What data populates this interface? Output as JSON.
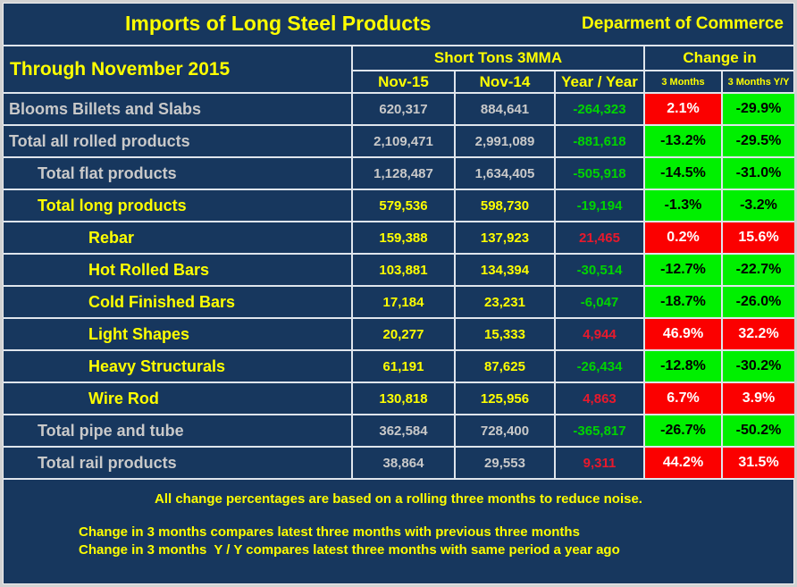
{
  "header": {
    "title": "Imports of Long Steel Products",
    "department": "Deparment of Commerce",
    "period": "Through November 2015",
    "group_tons": "Short Tons 3MMA",
    "group_change": "Change in",
    "columns": [
      "Nov-15",
      "Nov-14",
      "Year / Year",
      "3 Months",
      "3 Months Y/Y"
    ]
  },
  "rows": [
    {
      "label": "Blooms Billets and Slabs",
      "indent": 0,
      "tone": "silver",
      "nov15": "620,317",
      "nov14": "884,641",
      "yy": "-264,323",
      "yy_state": "neg",
      "m3": "2.1%",
      "m3_state": "pos",
      "m3yy": "-29.9%",
      "m3yy_state": "neg"
    },
    {
      "label": "Total all rolled products",
      "indent": 0,
      "tone": "silver",
      "nov15": "2,109,471",
      "nov14": "2,991,089",
      "yy": "-881,618",
      "yy_state": "neg",
      "m3": "-13.2%",
      "m3_state": "neg",
      "m3yy": "-29.5%",
      "m3yy_state": "neg"
    },
    {
      "label": "Total flat products",
      "indent": 1,
      "tone": "silver",
      "nov15": "1,128,487",
      "nov14": "1,634,405",
      "yy": "-505,918",
      "yy_state": "neg",
      "m3": "-14.5%",
      "m3_state": "neg",
      "m3yy": "-31.0%",
      "m3yy_state": "neg"
    },
    {
      "label": "Total long products",
      "indent": 1,
      "tone": "yellow",
      "nov15": "579,536",
      "nov14": "598,730",
      "yy": "-19,194",
      "yy_state": "neg",
      "m3": "-1.3%",
      "m3_state": "neg",
      "m3yy": "-3.2%",
      "m3yy_state": "neg"
    },
    {
      "label": "Rebar",
      "indent": 2,
      "tone": "yellow",
      "nov15": "159,388",
      "nov14": "137,923",
      "yy": "21,465",
      "yy_state": "pos",
      "m3": "0.2%",
      "m3_state": "pos",
      "m3yy": "15.6%",
      "m3yy_state": "pos"
    },
    {
      "label": "Hot Rolled Bars",
      "indent": 2,
      "tone": "yellow",
      "nov15": "103,881",
      "nov14": "134,394",
      "yy": "-30,514",
      "yy_state": "neg",
      "m3": "-12.7%",
      "m3_state": "neg",
      "m3yy": "-22.7%",
      "m3yy_state": "neg"
    },
    {
      "label": "Cold Finished Bars",
      "indent": 2,
      "tone": "yellow",
      "nov15": "17,184",
      "nov14": "23,231",
      "yy": "-6,047",
      "yy_state": "neg",
      "m3": "-18.7%",
      "m3_state": "neg",
      "m3yy": "-26.0%",
      "m3yy_state": "neg"
    },
    {
      "label": "Light Shapes",
      "indent": 2,
      "tone": "yellow",
      "nov15": "20,277",
      "nov14": "15,333",
      "yy": "4,944",
      "yy_state": "pos",
      "m3": "46.9%",
      "m3_state": "pos",
      "m3yy": "32.2%",
      "m3yy_state": "pos"
    },
    {
      "label": "Heavy Structurals",
      "indent": 2,
      "tone": "yellow",
      "nov15": "61,191",
      "nov14": "87,625",
      "yy": "-26,434",
      "yy_state": "neg",
      "m3": "-12.8%",
      "m3_state": "neg",
      "m3yy": "-30.2%",
      "m3yy_state": "neg"
    },
    {
      "label": "Wire Rod",
      "indent": 2,
      "tone": "yellow",
      "nov15": "130,818",
      "nov14": "125,956",
      "yy": "4,863",
      "yy_state": "pos",
      "m3": "6.7%",
      "m3_state": "pos",
      "m3yy": "3.9%",
      "m3yy_state": "pos"
    },
    {
      "label": "Total pipe and tube",
      "indent": 1,
      "tone": "silver",
      "nov15": "362,584",
      "nov14": "728,400",
      "yy": "-365,817",
      "yy_state": "neg",
      "m3": "-26.7%",
      "m3_state": "neg",
      "m3yy": "-50.2%",
      "m3yy_state": "neg"
    },
    {
      "label": "Total rail products",
      "indent": 1,
      "tone": "silver",
      "nov15": "38,864",
      "nov14": "29,553",
      "yy": "9,311",
      "yy_state": "pos",
      "m3": "44.2%",
      "m3_state": "pos",
      "m3yy": "31.5%",
      "m3yy_state": "pos"
    }
  ],
  "footer": {
    "note1": "All change percentages are based on a rolling three months to reduce noise.",
    "note2": "Change in 3 months compares latest three months with previous three months",
    "note3": "Change in 3 months  Y / Y compares latest three months with same period a year ago"
  },
  "colors": {
    "background_navy": "#17375E",
    "accent_yellow": "#FFFF00",
    "label_silver": "#C9C9C9",
    "positive_cell_red": "#FB0000",
    "negative_cell_green": "#00F000",
    "negative_number_green": "#00D400",
    "positive_number_red": "#E8192C",
    "gridline": "#DFE5EC"
  }
}
